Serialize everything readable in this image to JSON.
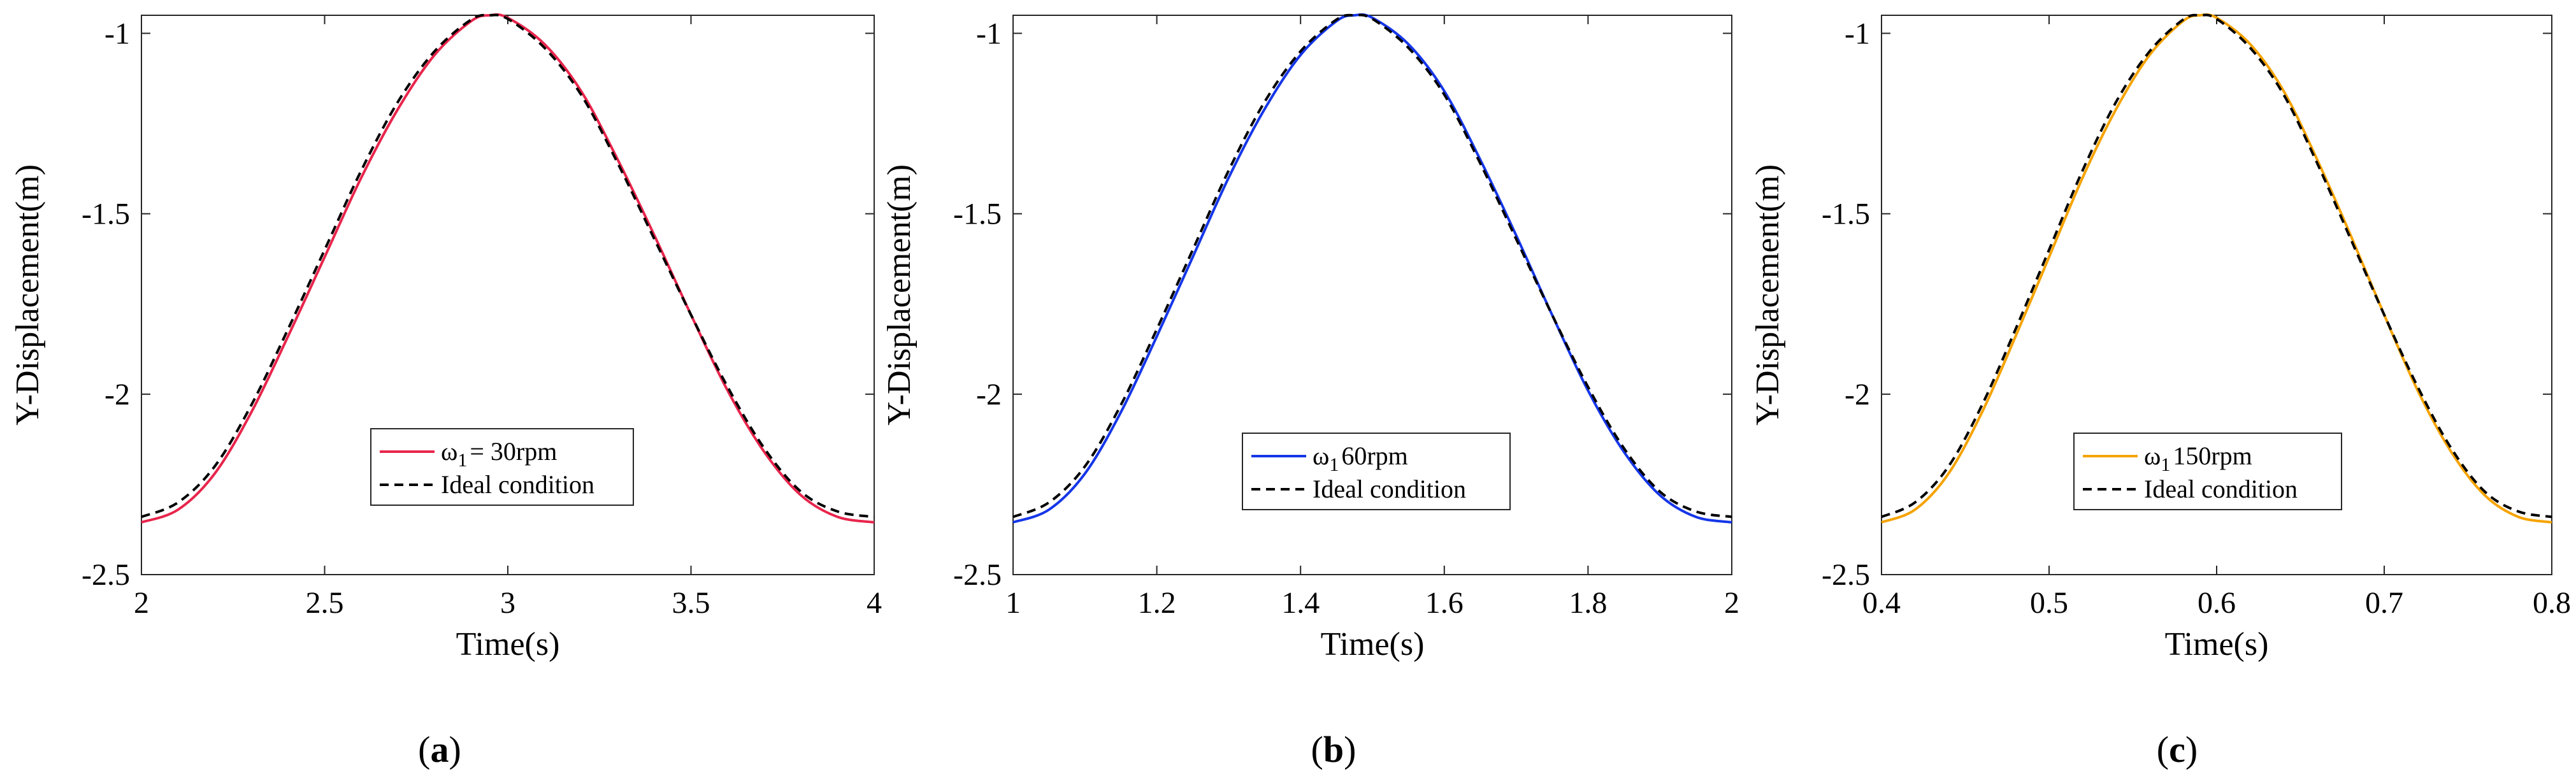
{
  "chart_data": [
    {
      "type": "line",
      "caption": "a",
      "xlabel": "Time(s)",
      "ylabel": "Y-Displacement(m)",
      "xlim": [
        2,
        4
      ],
      "ylim": [
        -2.5,
        -0.95
      ],
      "xticks": [
        2,
        2.5,
        3,
        3.5,
        4
      ],
      "xtick_labels": [
        "2",
        "2.5",
        "3",
        "3.5",
        "4"
      ],
      "yticks": [
        -2.5,
        -2,
        -1.5,
        -1
      ],
      "ytick_labels": [
        "-2.5",
        "-2",
        "-1.5",
        "-1"
      ],
      "legend": {
        "position": "lower-center"
      },
      "series": [
        {
          "name_main": "ω",
          "name_sub": "1",
          "name_rest": "= 30rpm",
          "color": "#e8254c",
          "style": "solid",
          "x": [
            2,
            2.1,
            2.2,
            2.3,
            2.4,
            2.5,
            2.6,
            2.7,
            2.8,
            2.9,
            2.95,
            3.0,
            3.1,
            3.2,
            3.3,
            3.4,
            3.5,
            3.6,
            3.7,
            3.8,
            3.9,
            4
          ],
          "y": [
            -2.355,
            -2.32,
            -2.22,
            -2.05,
            -1.84,
            -1.62,
            -1.4,
            -1.21,
            -1.06,
            -0.966,
            -0.95,
            -0.957,
            -1.03,
            -1.16,
            -1.35,
            -1.56,
            -1.78,
            -1.99,
            -2.16,
            -2.28,
            -2.34,
            -2.355
          ]
        },
        {
          "name": "Ideal condition",
          "color": "#000000",
          "style": "dashed",
          "x": [
            2,
            2.1,
            2.2,
            2.3,
            2.4,
            2.5,
            2.6,
            2.7,
            2.8,
            2.9,
            2.95,
            3.0,
            3.1,
            3.2,
            3.3,
            3.4,
            3.5,
            3.6,
            3.7,
            3.8,
            3.9,
            4
          ],
          "y": [
            -2.34,
            -2.3,
            -2.2,
            -2.03,
            -1.82,
            -1.6,
            -1.38,
            -1.19,
            -1.05,
            -0.962,
            -0.95,
            -0.96,
            -1.04,
            -1.17,
            -1.36,
            -1.57,
            -1.78,
            -1.98,
            -2.15,
            -2.27,
            -2.325,
            -2.34
          ]
        }
      ]
    },
    {
      "type": "line",
      "caption": "b",
      "xlabel": "Time(s)",
      "ylabel": "Y-Displacement(m)",
      "xlim": [
        1,
        2
      ],
      "ylim": [
        -2.5,
        -0.95
      ],
      "xticks": [
        1,
        1.2,
        1.4,
        1.6,
        1.8,
        2
      ],
      "xtick_labels": [
        "1",
        "1.2",
        "1.4",
        "1.6",
        "1.8",
        "2"
      ],
      "yticks": [
        -2.5,
        -2,
        -1.5,
        -1
      ],
      "ytick_labels": [
        "-2.5",
        "-2",
        "-1.5",
        "-1"
      ],
      "legend": {
        "position": "lower-center"
      },
      "series": [
        {
          "name_main": "ω",
          "name_sub": "1",
          "name_rest": "60rpm",
          "color": "#1536e8",
          "style": "solid",
          "x": [
            1,
            1.05,
            1.1,
            1.15,
            1.2,
            1.25,
            1.3,
            1.35,
            1.4,
            1.45,
            1.475,
            1.5,
            1.55,
            1.6,
            1.65,
            1.7,
            1.75,
            1.8,
            1.85,
            1.9,
            1.95,
            2
          ],
          "y": [
            -2.355,
            -2.32,
            -2.22,
            -2.05,
            -1.84,
            -1.62,
            -1.4,
            -1.21,
            -1.06,
            -0.966,
            -0.95,
            -0.957,
            -1.03,
            -1.16,
            -1.35,
            -1.56,
            -1.78,
            -1.99,
            -2.16,
            -2.28,
            -2.34,
            -2.355
          ]
        },
        {
          "name": "Ideal condition",
          "color": "#000000",
          "style": "dashed",
          "x": [
            1,
            1.05,
            1.1,
            1.15,
            1.2,
            1.25,
            1.3,
            1.35,
            1.4,
            1.45,
            1.475,
            1.5,
            1.55,
            1.6,
            1.65,
            1.7,
            1.75,
            1.8,
            1.85,
            1.9,
            1.95,
            2
          ],
          "y": [
            -2.34,
            -2.3,
            -2.2,
            -2.03,
            -1.82,
            -1.6,
            -1.38,
            -1.19,
            -1.05,
            -0.962,
            -0.95,
            -0.96,
            -1.04,
            -1.17,
            -1.36,
            -1.57,
            -1.78,
            -1.98,
            -2.15,
            -2.27,
            -2.325,
            -2.34
          ]
        }
      ]
    },
    {
      "type": "line",
      "caption": "c",
      "xlabel": "Time(s)",
      "ylabel": "Y-Displacement(m)",
      "xlim": [
        0.4,
        0.8
      ],
      "ylim": [
        -2.5,
        -0.95
      ],
      "xticks": [
        0.4,
        0.5,
        0.6,
        0.7,
        0.8
      ],
      "xtick_labels": [
        "0.4",
        "0.5",
        "0.6",
        "0.7",
        "0.8"
      ],
      "yticks": [
        -2.5,
        -2,
        -1.5,
        -1
      ],
      "ytick_labels": [
        "-2.5",
        "-2",
        "-1.5",
        "-1"
      ],
      "legend": {
        "position": "lower-center"
      },
      "series": [
        {
          "name_main": "ω",
          "name_sub": "1",
          "name_rest": "150rpm",
          "color": "#f5a300",
          "style": "solid",
          "x": [
            0.4,
            0.42,
            0.44,
            0.46,
            0.48,
            0.5,
            0.52,
            0.54,
            0.56,
            0.58,
            0.59,
            0.6,
            0.62,
            0.64,
            0.66,
            0.68,
            0.7,
            0.72,
            0.74,
            0.76,
            0.78,
            0.8
          ],
          "y": [
            -2.355,
            -2.32,
            -2.22,
            -2.05,
            -1.84,
            -1.62,
            -1.4,
            -1.21,
            -1.06,
            -0.966,
            -0.95,
            -0.957,
            -1.03,
            -1.16,
            -1.35,
            -1.56,
            -1.78,
            -1.99,
            -2.16,
            -2.28,
            -2.34,
            -2.355
          ]
        },
        {
          "name": "Ideal condition",
          "color": "#000000",
          "style": "dashed",
          "x": [
            0.4,
            0.42,
            0.44,
            0.46,
            0.48,
            0.5,
            0.52,
            0.54,
            0.56,
            0.58,
            0.59,
            0.6,
            0.62,
            0.64,
            0.66,
            0.68,
            0.7,
            0.72,
            0.74,
            0.76,
            0.78,
            0.8
          ],
          "y": [
            -2.34,
            -2.3,
            -2.2,
            -2.03,
            -1.82,
            -1.6,
            -1.38,
            -1.19,
            -1.05,
            -0.962,
            -0.95,
            -0.96,
            -1.04,
            -1.17,
            -1.36,
            -1.57,
            -1.78,
            -1.98,
            -2.15,
            -2.27,
            -2.325,
            -2.34
          ]
        }
      ]
    }
  ]
}
